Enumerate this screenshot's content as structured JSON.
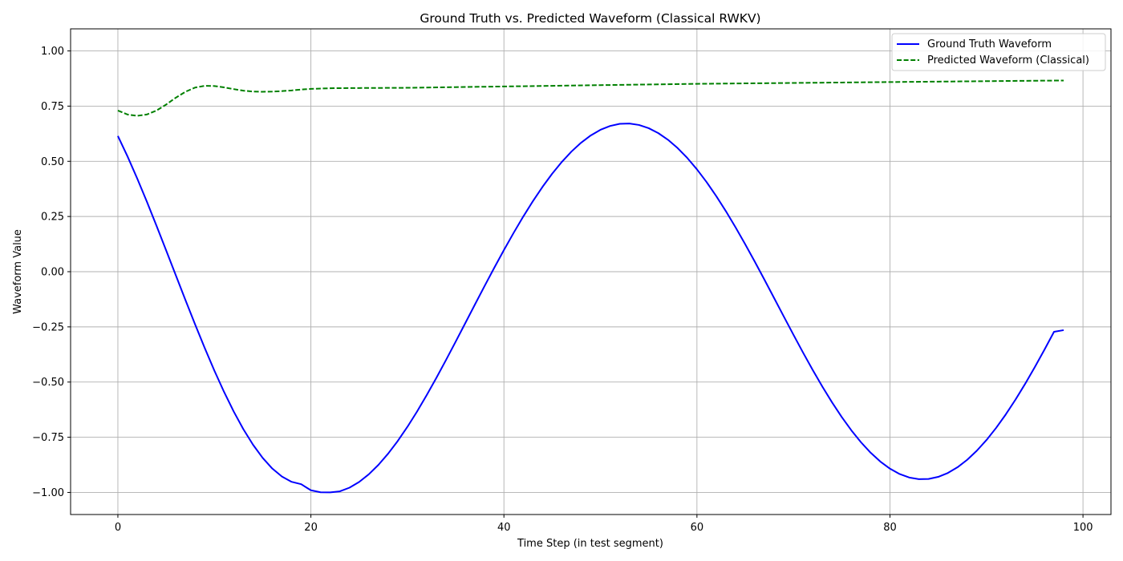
{
  "chart_data": {
    "type": "line",
    "title": "Ground Truth vs. Predicted Waveform (Classical RWKV)",
    "xlabel": "Time Step (in test segment)",
    "ylabel": "Waveform Value",
    "xlim": [
      -4.9,
      102.9
    ],
    "ylim": [
      -1.1,
      1.1
    ],
    "xticks": [
      0,
      20,
      40,
      60,
      80,
      100
    ],
    "xtick_labels": [
      "0",
      "20",
      "40",
      "60",
      "80",
      "100"
    ],
    "yticks": [
      -1.0,
      -0.75,
      -0.5,
      -0.25,
      0.0,
      0.25,
      0.5,
      0.75,
      1.0
    ],
    "ytick_labels": [
      "−1.00",
      "−0.75",
      "−0.50",
      "−0.25",
      "0.00",
      "0.25",
      "0.50",
      "0.75",
      "1.00"
    ],
    "grid": true,
    "legend_position": "top-right",
    "series": [
      {
        "name": "Ground Truth Waveform",
        "color": "#0000ff",
        "style": "solid",
        "x": [
          0,
          1,
          2,
          3,
          4,
          5,
          6,
          7,
          8,
          9,
          10,
          11,
          12,
          13,
          14,
          15,
          16,
          17,
          18,
          19,
          20,
          21,
          22,
          23,
          24,
          25,
          26,
          27,
          28,
          29,
          30,
          31,
          32,
          33,
          34,
          35,
          36,
          37,
          38,
          39,
          40,
          41,
          42,
          43,
          44,
          45,
          46,
          47,
          48,
          49,
          50,
          51,
          52,
          53,
          54,
          55,
          56,
          57,
          58,
          59,
          60,
          61,
          62,
          63,
          64,
          65,
          66,
          67,
          68,
          69,
          70,
          71,
          72,
          73,
          74,
          75,
          76,
          77,
          78,
          79,
          80,
          81,
          82,
          83,
          84,
          85,
          86,
          87,
          88,
          89,
          90,
          91,
          92,
          93,
          94,
          95,
          96,
          97,
          98
        ],
        "values": [
          0.6146,
          0.5221,
          0.4226,
          0.3176,
          0.2085,
          0.0968,
          -0.0159,
          -0.1283,
          -0.2388,
          -0.3459,
          -0.4483,
          -0.5445,
          -0.6332,
          -0.7133,
          -0.7837,
          -0.8434,
          -0.8918,
          -0.9281,
          -0.9519,
          -0.9628,
          -0.9903,
          -0.9993,
          -0.9997,
          -0.9951,
          -0.9784,
          -0.9525,
          -0.9179,
          -0.875,
          -0.8244,
          -0.7668,
          -0.7029,
          -0.6334,
          -0.5592,
          -0.4811,
          -0.4001,
          -0.317,
          -0.2328,
          -0.1484,
          -0.0646,
          0.0176,
          0.0979,
          0.1754,
          0.2494,
          0.3193,
          0.3843,
          0.4438,
          0.4973,
          0.5443,
          0.5844,
          0.6173,
          0.6426,
          0.6601,
          0.6697,
          0.6712,
          0.6646,
          0.65,
          0.6276,
          0.5975,
          0.5599,
          0.5151,
          0.4636,
          0.4059,
          0.3425,
          0.274,
          0.2011,
          0.1245,
          0.0449,
          -0.0368,
          -0.1198,
          -0.2031,
          -0.2858,
          -0.3669,
          -0.4456,
          -0.5209,
          -0.592,
          -0.6581,
          -0.7186,
          -0.7728,
          -0.8201,
          -0.8601,
          -0.8923,
          -0.9165,
          -0.9324,
          -0.9399,
          -0.9389,
          -0.9295,
          -0.9118,
          -0.8859,
          -0.8522,
          -0.811,
          -0.7627,
          -0.7077,
          -0.6466,
          -0.58,
          -0.5085,
          -0.4329,
          -0.3539,
          -0.2722,
          -0.2648
        ]
      },
      {
        "name": "Predicted Waveform (Classical)",
        "color": "#008000",
        "style": "dashed",
        "x": [
          0,
          1,
          2,
          3,
          4,
          5,
          6,
          7,
          8,
          9,
          10,
          11,
          12,
          13,
          14,
          15,
          16,
          17,
          18,
          19,
          20,
          22,
          25,
          30,
          35,
          40,
          45,
          50,
          55,
          60,
          65,
          70,
          75,
          80,
          85,
          90,
          95,
          98
        ],
        "values": [
          0.73,
          0.712,
          0.706,
          0.712,
          0.73,
          0.757,
          0.788,
          0.815,
          0.834,
          0.842,
          0.841,
          0.835,
          0.827,
          0.82,
          0.816,
          0.815,
          0.816,
          0.818,
          0.821,
          0.825,
          0.828,
          0.831,
          0.832,
          0.833,
          0.836,
          0.839,
          0.842,
          0.845,
          0.848,
          0.851,
          0.853,
          0.855,
          0.857,
          0.859,
          0.861,
          0.863,
          0.865,
          0.866
        ]
      }
    ]
  }
}
